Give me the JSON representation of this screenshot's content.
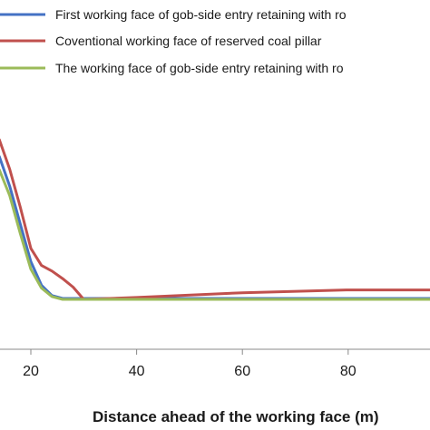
{
  "chart_data": {
    "type": "line",
    "xlabel": "Distance ahead of the working face (m)",
    "ylabel": "",
    "xlim": [
      14,
      100
    ],
    "xticks": [
      20,
      40,
      60,
      80
    ],
    "grid": false,
    "legend_position": "top",
    "series": [
      {
        "name": "First working face of gob-side entry retaining with ro",
        "color": "#4472C4",
        "points": [
          [
            14,
            182
          ],
          [
            16,
            150
          ],
          [
            18,
            110
          ],
          [
            20,
            70
          ],
          [
            22,
            45
          ],
          [
            24,
            34
          ],
          [
            26,
            31
          ],
          [
            28,
            31
          ],
          [
            30,
            31
          ],
          [
            40,
            31
          ],
          [
            60,
            31
          ],
          [
            80,
            31
          ],
          [
            100,
            31
          ]
        ]
      },
      {
        "name": "Coventional working face of reserved coal pillar",
        "color": "#C0504D",
        "points": [
          [
            14,
            200
          ],
          [
            16,
            168
          ],
          [
            18,
            128
          ],
          [
            20,
            84
          ],
          [
            22,
            66
          ],
          [
            24,
            60
          ],
          [
            26,
            52
          ],
          [
            28,
            43
          ],
          [
            30,
            30
          ],
          [
            40,
            32
          ],
          [
            60,
            37
          ],
          [
            80,
            40
          ],
          [
            100,
            40
          ]
        ]
      },
      {
        "name": "The working face of gob-side entry retaining with ro",
        "color": "#9BBB59",
        "points": [
          [
            14,
            168
          ],
          [
            16,
            140
          ],
          [
            18,
            100
          ],
          [
            20,
            62
          ],
          [
            22,
            42
          ],
          [
            24,
            33
          ],
          [
            26,
            30
          ],
          [
            28,
            30
          ],
          [
            30,
            30
          ],
          [
            40,
            30
          ],
          [
            60,
            30
          ],
          [
            80,
            30
          ],
          [
            100,
            30
          ]
        ]
      }
    ]
  }
}
